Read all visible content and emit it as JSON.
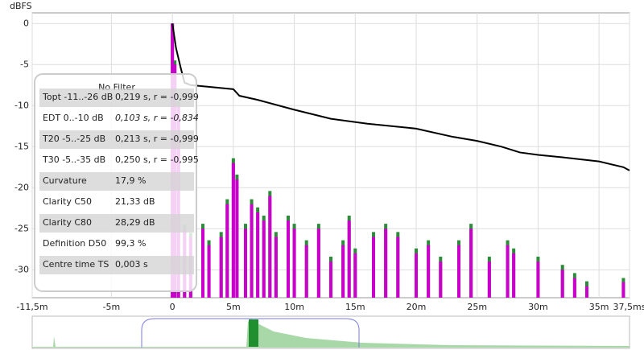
{
  "chart_data": {
    "type": "line",
    "y_label": "dBFS",
    "xlim": [
      -11.5,
      37.5
    ],
    "ylim": [
      -33.4,
      1.3
    ],
    "xticks": [
      {
        "value": -11.5,
        "label": "-11,5m"
      },
      {
        "value": -5,
        "label": "-5m"
      },
      0,
      {
        "value": 5,
        "label": "5m"
      },
      {
        "value": 10,
        "label": "10m"
      },
      {
        "value": 15,
        "label": "15m"
      },
      {
        "value": 20,
        "label": "20m"
      },
      {
        "value": 25,
        "label": "25m"
      },
      {
        "value": 30,
        "label": "30m"
      },
      {
        "value": 35,
        "label": "35m"
      },
      {
        "value": 37.5,
        "label": "37,5ms"
      }
    ],
    "yticks": [
      0,
      -5,
      -10,
      -15,
      -20,
      -25,
      -30
    ],
    "grid": true,
    "series": [
      {
        "type": "spike",
        "color": "#2e8b3a",
        "x": [
          0,
          0.2,
          0.5,
          1,
          1.5,
          2.5,
          3,
          4,
          4.5,
          5,
          5.3,
          6,
          6.5,
          7,
          7.5,
          8,
          8.5,
          9.5,
          10,
          11,
          12,
          13,
          14,
          14.5,
          15,
          16.5,
          17.5,
          18.5,
          20,
          21,
          22,
          23.5,
          24.5,
          26,
          27.5,
          28,
          30,
          32,
          33,
          34,
          37
        ],
        "values": [
          0,
          -4.5,
          -9.5,
          -24.5,
          -25.5,
          -24.4,
          -26.4,
          -25.4,
          -21.4,
          -16.4,
          -18.4,
          -24.4,
          -21.4,
          -22.4,
          -23.4,
          -20.4,
          -25.4,
          -23.4,
          -24.4,
          -26.4,
          -24.4,
          -28.4,
          -26.4,
          -23.4,
          -27.4,
          -25.4,
          -24.4,
          -25.4,
          -27.4,
          -26.4,
          -28.4,
          -26.4,
          -24.4,
          -28.4,
          -26.4,
          -27.4,
          -28.4,
          -29.4,
          -30.4,
          -31.4,
          -31
        ]
      },
      {
        "type": "spike",
        "color": "#cc00cc",
        "x": [
          0,
          0.2,
          0.5,
          1,
          1.5,
          2.5,
          3,
          4,
          4.5,
          5,
          5.3,
          6,
          6.5,
          7,
          7.5,
          8,
          8.5,
          9.5,
          10,
          11,
          12,
          13,
          14,
          14.5,
          15,
          16.5,
          17.5,
          18.5,
          20,
          21,
          22,
          23.5,
          24.5,
          26,
          27.5,
          28,
          30,
          32,
          33,
          34,
          37
        ],
        "values": [
          0,
          -5,
          -10,
          -25,
          -26,
          -25,
          -27,
          -26,
          -22,
          -17,
          -19,
          -25,
          -22,
          -23,
          -24,
          -21,
          -26,
          -24,
          -25,
          -27,
          -25,
          -29,
          -27,
          -24,
          -28,
          -26,
          -25,
          -26,
          -28,
          -27,
          -29,
          -27,
          -25,
          -29,
          -27,
          -28,
          -29,
          -30,
          -31,
          -32,
          -31.5
        ]
      },
      {
        "type": "line",
        "color": "#000000",
        "x": [
          0,
          0.3,
          0.7,
          1,
          1.5,
          5,
          5.5,
          7,
          10,
          13,
          16,
          20,
          23,
          25,
          27,
          28.5,
          30,
          32,
          35,
          37,
          37.5
        ],
        "values": [
          0,
          -3,
          -5.5,
          -7.2,
          -7.5,
          -8,
          -8.8,
          -9.3,
          -10.5,
          -11.6,
          -12.2,
          -12.8,
          -13.8,
          -14.3,
          -15,
          -15.7,
          -16,
          -16.3,
          -16.8,
          -17.5,
          -17.9
        ]
      }
    ]
  },
  "info_table": {
    "title": "No Filter",
    "rows": [
      [
        "Topt -11..-26 dB",
        "0,219 s,  r = -0,999"
      ],
      [
        "EDT  0..-10 dB",
        "0,103 s,  r = -0,834"
      ],
      [
        "T20 -5..-25 dB",
        "0,213 s,  r = -0,999"
      ],
      [
        "T30 -5..-35 dB",
        "0,250 s,  r = -0,995"
      ],
      [
        "Curvature",
        "17,9 %"
      ],
      [
        "Clarity C50",
        "21,33 dB"
      ],
      [
        "Clarity C80",
        "28,29 dB"
      ],
      [
        "Definition D50",
        "99,3 %"
      ],
      [
        "Centre time TS",
        "0,003 s"
      ]
    ]
  }
}
